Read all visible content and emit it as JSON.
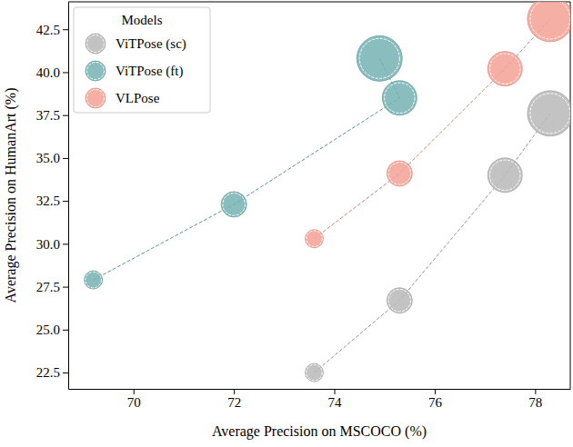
{
  "chart_data": {
    "type": "scatter",
    "x_label": "Average Precision on MSCOCO (%)",
    "y_label": "Average Precision on HumanArt (%)",
    "legend": "upper left",
    "legend_title": "Models",
    "marker": "circle",
    "line_style": "dashed",
    "xlim": [
      68.7,
      78.7
    ],
    "ylim": [
      21.55,
      44.1
    ],
    "xticks": [
      70,
      72,
      74,
      76,
      78
    ],
    "yticks": [
      22.5,
      {
        "value": 25,
        "label": "25.0"
      },
      27.5,
      {
        "value": 30,
        "label": "30.0"
      },
      32.5,
      {
        "value": 35,
        "label": "35.0"
      },
      37.5,
      {
        "value": 40,
        "label": "40.0"
      },
      42.5
    ],
    "series": [
      {
        "name": "ViTPose (sc)",
        "color": "#b9b9b9",
        "x": [
          73.6,
          75.3,
          77.4,
          78.3
        ],
        "values": [
          22.5,
          26.7,
          34.0,
          37.6
        ],
        "sizes": [
          100,
          196,
          361,
          625
        ]
      },
      {
        "name": "ViTPose (ft)",
        "color": "#76b2b2",
        "x": [
          69.2,
          72.0,
          75.3,
          74.9
        ],
        "values": [
          27.9,
          32.3,
          38.5,
          40.8
        ],
        "sizes": [
          100,
          196,
          361,
          625
        ]
      },
      {
        "name": "VLPose",
        "color": "#f4a195",
        "x": [
          73.6,
          75.3,
          77.4,
          78.3
        ],
        "values": [
          30.3,
          34.1,
          40.2,
          43.1
        ],
        "sizes": [
          100,
          196,
          361,
          625
        ]
      }
    ]
  }
}
